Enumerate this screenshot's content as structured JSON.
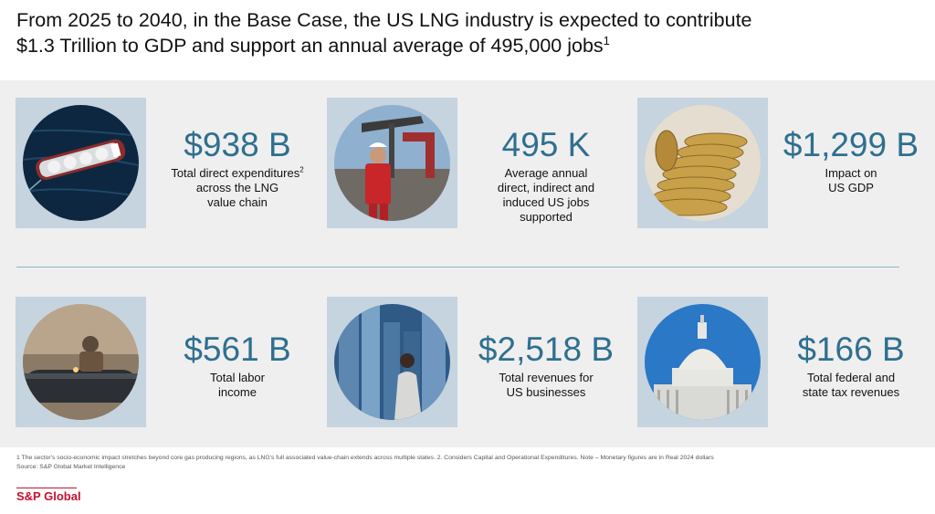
{
  "title": {
    "line1": "From 2025 to 2040, in the Base Case, the US LNG industry is expected to contribute",
    "line2": "$1.3 Trillion to GDP and support an annual average of 495,000 jobs",
    "line2_sup": "1"
  },
  "stats": [
    {
      "value": "$938 B",
      "label_a": "Total direct expenditures",
      "label_sup": "2",
      "label_b": "across the LNG value chain",
      "image": "lng-tanker-ship"
    },
    {
      "value": "495 K",
      "label": "Average annual direct, indirect and induced US jobs supported",
      "image": "oil-field-worker"
    },
    {
      "value": "$1,299 B",
      "label": "Impact on US GDP",
      "image": "gold-coins-stack"
    },
    {
      "value": "$561 B",
      "label": "Total labor income",
      "image": "pipeline-welder"
    },
    {
      "value": "$2,518 B",
      "label": "Total revenues for US businesses",
      "image": "city-skyline-woman"
    },
    {
      "value": "$166 B",
      "label": "Total federal and state tax revenues",
      "image": "us-capitol-building"
    }
  ],
  "footnote": "1 The sector's socio-economic impact stretches beyond core gas producing regions, as LNG's full associated value-chain extends across multiple states. 2. Considers Capital and Operational Expenditures. Note – Monetary figures are in Real 2024 dollars",
  "source": "Source: S&P Global Market Intelligence",
  "logo": "S&P Global",
  "colors": {
    "accent": "#2f6f8f",
    "brand": "#c8102e",
    "panel": "#efefef",
    "image_bg": "#c5d4df"
  }
}
